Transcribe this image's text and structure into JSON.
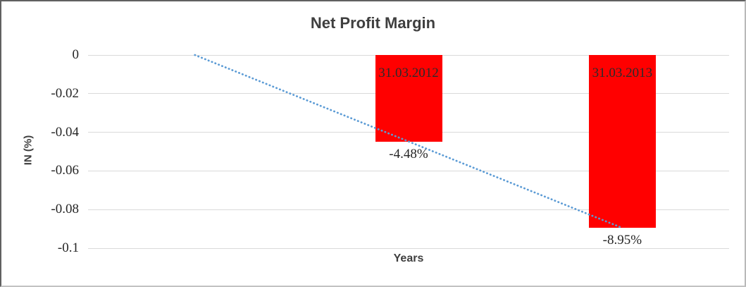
{
  "chart_data": {
    "type": "bar",
    "title": "Net Profit Margin",
    "xlabel": "Years",
    "ylabel": "IN (%)",
    "categories": [
      "",
      "31.03.2012",
      "31.03.2013"
    ],
    "values": [
      null,
      -0.0448,
      -0.0895
    ],
    "data_labels": [
      null,
      "-4.48%",
      "-8.95%"
    ],
    "y_ticks": [
      {
        "value": 0,
        "label": "0"
      },
      {
        "value": -0.02,
        "label": "-0.02"
      },
      {
        "value": -0.04,
        "label": "-0.04"
      },
      {
        "value": -0.06,
        "label": "-0.06"
      },
      {
        "value": -0.08,
        "label": "-0.08"
      },
      {
        "value": -0.1,
        "label": "-0.1"
      }
    ],
    "ylim": [
      -0.1,
      0
    ],
    "grid": true,
    "legend_position": "none",
    "trendline": {
      "style": "dotted",
      "points": [
        {
          "category_index": 0,
          "value": 0
        },
        {
          "category_index": 2,
          "value": -0.0895
        }
      ]
    },
    "colors": {
      "bar": "#FF0000",
      "trendline": "#5B9BD5",
      "gridline": "#D9D9D9",
      "title_text": "#3F3F3F",
      "tick_text": "#262626",
      "bar_label_text": "#2B2B2B",
      "data_label_text": "#262626"
    }
  }
}
